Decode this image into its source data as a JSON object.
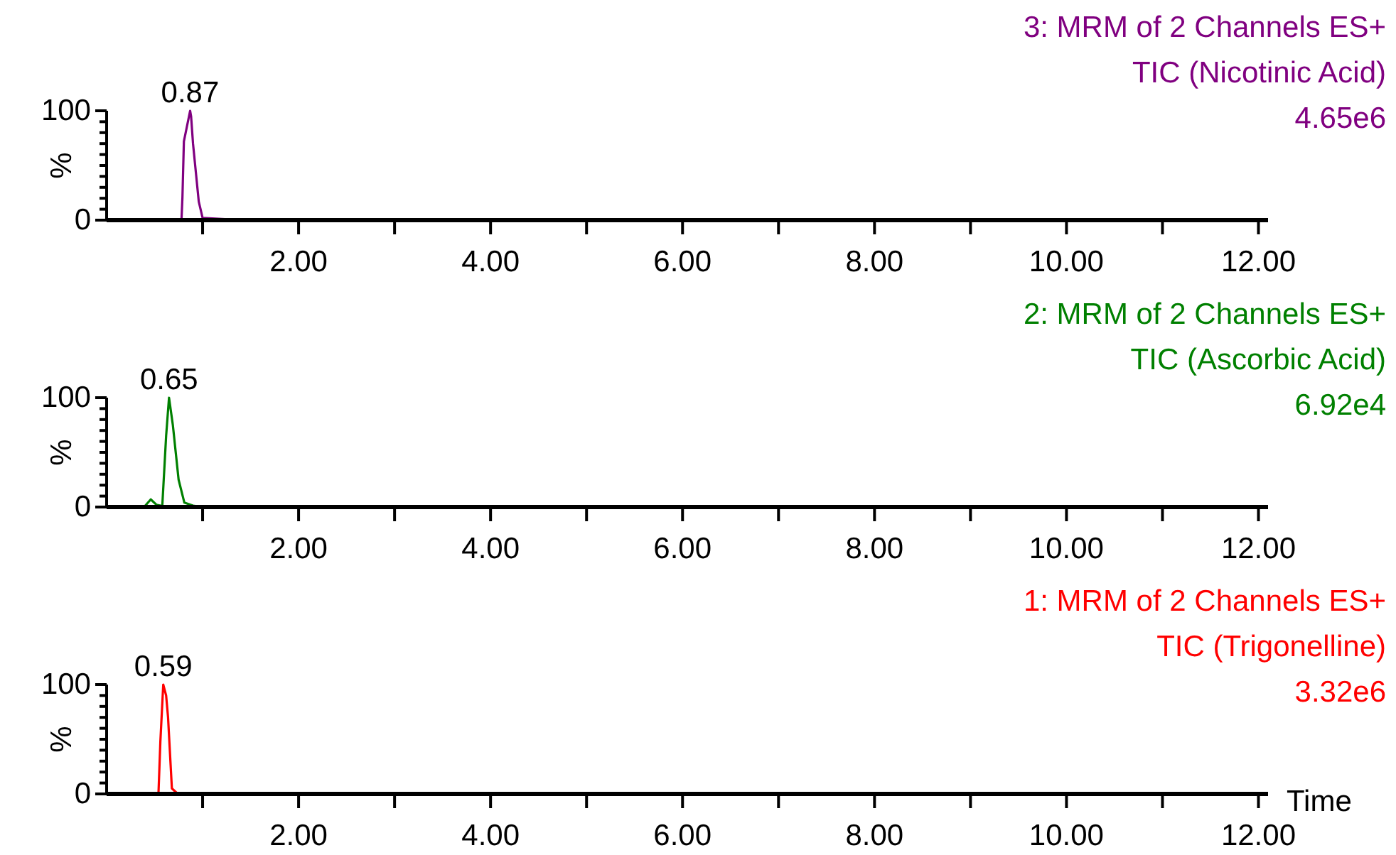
{
  "chart_data": [
    {
      "type": "line",
      "title": "3: MRM of 2 Channels ES+",
      "subtitle": "TIC (Nicotinic Acid)",
      "ylabel": "%",
      "annotations": [
        "4.65e6",
        {
          "text": "0.87",
          "x": 0.87,
          "y": 100
        }
      ],
      "xlim": [
        0,
        12.1
      ],
      "ylim": [
        0,
        100
      ],
      "yticks": [
        {
          "value": 0,
          "label": "0"
        },
        {
          "value": 10,
          "label": null
        },
        {
          "value": 20,
          "label": null
        },
        {
          "value": 30,
          "label": null
        },
        {
          "value": 40,
          "label": null
        },
        {
          "value": 50,
          "label": null
        },
        {
          "value": 60,
          "label": null
        },
        {
          "value": 70,
          "label": null
        },
        {
          "value": 80,
          "label": null
        },
        {
          "value": 90,
          "label": null
        },
        {
          "value": 100,
          "label": "100"
        }
      ],
      "xticks": [
        {
          "value": 1,
          "label": null
        },
        {
          "value": 2,
          "label": "2.00"
        },
        {
          "value": 3,
          "label": null
        },
        {
          "value": 4,
          "label": "4.00"
        },
        {
          "value": 5,
          "label": null
        },
        {
          "value": 6,
          "label": "6.00"
        },
        {
          "value": 7,
          "label": null
        },
        {
          "value": 8,
          "label": "8.00"
        },
        {
          "value": 9,
          "label": null
        },
        {
          "value": 10,
          "label": "10.00"
        },
        {
          "value": 11,
          "label": null
        },
        {
          "value": 12,
          "label": "12.00"
        }
      ],
      "series": [
        {
          "color": "#800080",
          "x": [
            0.52,
            0.78,
            0.79,
            0.805,
            0.87,
            0.88,
            0.9,
            0.96,
            1.0,
            1.43
          ],
          "values": [
            0,
            0,
            21,
            72,
            100,
            95,
            70,
            17,
            2,
            0
          ]
        }
      ]
    },
    {
      "type": "line",
      "title": "2: MRM of 2 Channels ES+",
      "subtitle": "TIC (Ascorbic Acid)",
      "ylabel": "%",
      "annotations": [
        "6.92e4",
        {
          "text": "0.65",
          "x": 0.65,
          "y": 100
        }
      ],
      "xlim": [
        0,
        12.1
      ],
      "ylim": [
        0,
        100
      ],
      "yticks": [
        {
          "value": 0,
          "label": "0"
        },
        {
          "value": 10,
          "label": null
        },
        {
          "value": 20,
          "label": null
        },
        {
          "value": 30,
          "label": null
        },
        {
          "value": 40,
          "label": null
        },
        {
          "value": 50,
          "label": null
        },
        {
          "value": 60,
          "label": null
        },
        {
          "value": 70,
          "label": null
        },
        {
          "value": 80,
          "label": null
        },
        {
          "value": 90,
          "label": null
        },
        {
          "value": 100,
          "label": "100"
        }
      ],
      "xticks": [
        {
          "value": 1,
          "label": null
        },
        {
          "value": 2,
          "label": "2.00"
        },
        {
          "value": 3,
          "label": null
        },
        {
          "value": 4,
          "label": "4.00"
        },
        {
          "value": 5,
          "label": null
        },
        {
          "value": 6,
          "label": "6.00"
        },
        {
          "value": 7,
          "label": null
        },
        {
          "value": 8,
          "label": "8.00"
        },
        {
          "value": 9,
          "label": null
        },
        {
          "value": 10,
          "label": "10.00"
        },
        {
          "value": 11,
          "label": null
        },
        {
          "value": 12,
          "label": "12.00"
        }
      ],
      "series": [
        {
          "color": "#008000",
          "x": [
            0.39,
            0.46,
            0.52,
            0.58,
            0.62,
            0.65,
            0.69,
            0.75,
            0.81,
            0.91,
            1.06
          ],
          "values": [
            0,
            7,
            2,
            1,
            65,
            100,
            75,
            25,
            4,
            1,
            0
          ]
        }
      ]
    },
    {
      "type": "line",
      "title": "1: MRM of 2 Channels ES+",
      "subtitle": "TIC (Trigonelline)",
      "ylabel": "%",
      "xlabel": "Time",
      "annotations": [
        "3.32e6",
        {
          "text": "0.59",
          "x": 0.59,
          "y": 100
        }
      ],
      "xlim": [
        0,
        12.1
      ],
      "ylim": [
        0,
        100
      ],
      "yticks": [
        {
          "value": 0,
          "label": "0"
        },
        {
          "value": 10,
          "label": null
        },
        {
          "value": 20,
          "label": null
        },
        {
          "value": 30,
          "label": null
        },
        {
          "value": 40,
          "label": null
        },
        {
          "value": 50,
          "label": null
        },
        {
          "value": 60,
          "label": null
        },
        {
          "value": 70,
          "label": null
        },
        {
          "value": 80,
          "label": null
        },
        {
          "value": 90,
          "label": null
        },
        {
          "value": 100,
          "label": "100"
        }
      ],
      "xticks": [
        {
          "value": 1,
          "label": null
        },
        {
          "value": 2,
          "label": "2.00"
        },
        {
          "value": 3,
          "label": null
        },
        {
          "value": 4,
          "label": "4.00"
        },
        {
          "value": 5,
          "label": null
        },
        {
          "value": 6,
          "label": "6.00"
        },
        {
          "value": 7,
          "label": null
        },
        {
          "value": 8,
          "label": "8.00"
        },
        {
          "value": 9,
          "label": null
        },
        {
          "value": 10,
          "label": "10.00"
        },
        {
          "value": 11,
          "label": null
        },
        {
          "value": 12,
          "label": "12.00"
        }
      ],
      "series": [
        {
          "color": "#ff0000",
          "x": [
            0.3,
            0.54,
            0.56,
            0.59,
            0.62,
            0.64,
            0.68,
            0.73,
            0.94
          ],
          "values": [
            0,
            0,
            48,
            100,
            90,
            70,
            5,
            1,
            0
          ]
        }
      ]
    }
  ]
}
